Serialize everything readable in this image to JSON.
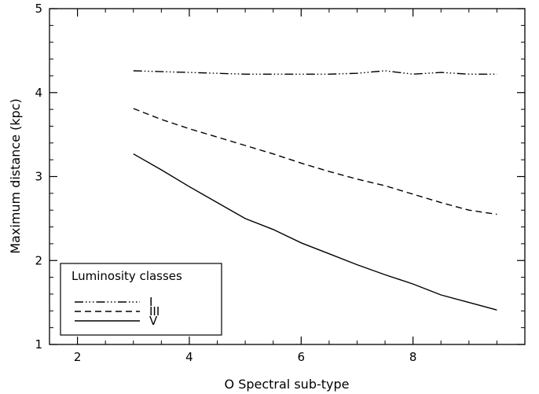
{
  "chart_data": {
    "type": "line",
    "xlabel": "O Spectral sub-type",
    "ylabel": "Maximum distance (kpc)",
    "xlim": [
      1.5,
      10.0
    ],
    "ylim": [
      1,
      5
    ],
    "xticks": [
      "2",
      "4",
      "6",
      "8"
    ],
    "yticks": [
      "1",
      "2",
      "3",
      "4",
      "5"
    ],
    "grid": false,
    "legend": {
      "title": "Luminosity classes",
      "placement": "bottom-left"
    },
    "series": [
      {
        "name": "I",
        "style": "dash-dot-dot-dot",
        "x": [
          3,
          3.5,
          4,
          4.5,
          5,
          5.5,
          6,
          6.5,
          7,
          7.5,
          8,
          8.5,
          9,
          9.5
        ],
        "y": [
          4.26,
          4.25,
          4.24,
          4.23,
          4.22,
          4.22,
          4.22,
          4.22,
          4.23,
          4.26,
          4.22,
          4.24,
          4.22,
          4.22
        ]
      },
      {
        "name": "III",
        "style": "dashed",
        "x": [
          3,
          3.5,
          4,
          4.5,
          5,
          5.5,
          6,
          6.5,
          7,
          7.5,
          8,
          8.5,
          9,
          9.5
        ],
        "y": [
          3.81,
          3.68,
          3.57,
          3.47,
          3.37,
          3.27,
          3.16,
          3.06,
          2.97,
          2.89,
          2.79,
          2.69,
          2.6,
          2.55
        ]
      },
      {
        "name": "V",
        "style": "solid",
        "x": [
          3,
          3.5,
          4,
          4.5,
          5,
          5.5,
          6,
          6.5,
          7,
          7.5,
          8,
          8.5,
          9,
          9.5
        ],
        "y": [
          3.27,
          3.08,
          2.88,
          2.69,
          2.5,
          2.37,
          2.21,
          2.08,
          1.95,
          1.83,
          1.72,
          1.59,
          1.5,
          1.41
        ]
      }
    ]
  }
}
